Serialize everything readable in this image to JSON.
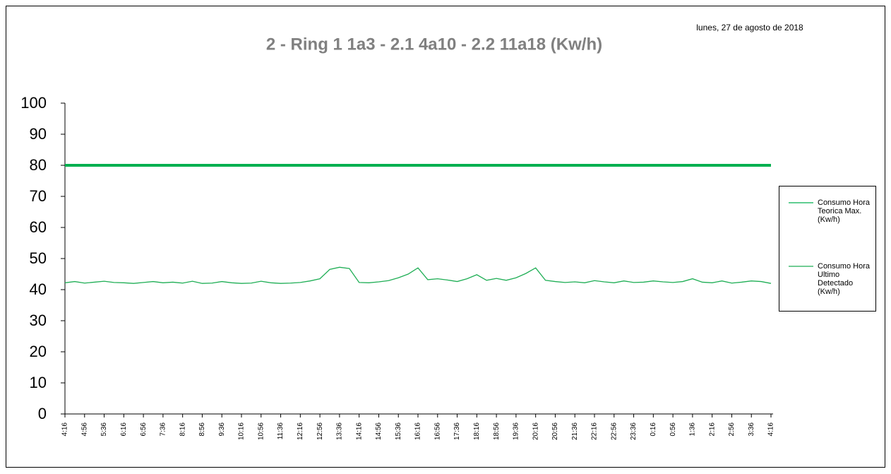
{
  "chart_data": {
    "type": "line",
    "title": "2 - Ring 1 1a3 - 2.1 4a10 - 2.2 11a18 (Kw/h)",
    "subtitle": "lunes, 27 de agosto de 2018",
    "categories": [
      "4:16",
      null,
      "4:56",
      null,
      "5:36",
      null,
      "6:16",
      null,
      "6:56",
      null,
      "7:36",
      null,
      "8:16",
      null,
      "8:56",
      null,
      "9:36",
      null,
      "10:16",
      null,
      "10:56",
      null,
      "11:36",
      null,
      "12:16",
      null,
      "12:56",
      null,
      "13:36",
      null,
      "14:16",
      null,
      "14:56",
      null,
      "15:36",
      null,
      "16:16",
      null,
      "16:56",
      null,
      "17:36",
      null,
      "18:16",
      null,
      "18:56",
      null,
      "19:36",
      null,
      "20:16",
      null,
      "20:56",
      null,
      "21:36",
      null,
      "22:16",
      null,
      "22:56",
      null,
      "23:36",
      null,
      "0:16",
      null,
      "0:56",
      null,
      "1:36",
      null,
      "2:16",
      null,
      "2:56",
      null,
      "3:36",
      null,
      "4:16"
    ],
    "series": [
      {
        "name": "Consumo Hora Teorica Max. (Kw/h)",
        "color": "#00b050",
        "values": [
          80,
          80,
          80,
          80,
          80,
          80,
          80,
          80,
          80,
          80,
          80,
          80,
          80,
          80,
          80,
          80,
          80,
          80,
          80,
          80,
          80,
          80,
          80,
          80,
          80,
          80,
          80,
          80,
          80,
          80,
          80,
          80,
          80,
          80,
          80,
          80,
          80,
          80,
          80,
          80,
          80,
          80,
          80,
          80,
          80,
          80,
          80,
          80,
          80,
          80,
          80,
          80,
          80,
          80,
          80,
          80,
          80,
          80,
          80,
          80,
          80,
          80,
          80,
          80,
          80,
          80,
          80,
          80,
          80,
          80,
          80,
          80,
          80
        ]
      },
      {
        "name": "Consumo Hora Ultimo Detectado (Kw/h)",
        "color": "#1fae55",
        "values": [
          42.2,
          42.6,
          42.1,
          42.4,
          42.7,
          42.3,
          42.2,
          42.0,
          42.3,
          42.6,
          42.2,
          42.4,
          42.1,
          42.7,
          42.0,
          42.1,
          42.6,
          42.2,
          42.0,
          42.1,
          42.7,
          42.2,
          42.0,
          42.1,
          42.3,
          42.8,
          43.5,
          46.5,
          47.2,
          46.8,
          42.3,
          42.2,
          42.5,
          42.9,
          43.8,
          45.0,
          47.0,
          43.2,
          43.5,
          43.1,
          42.6,
          43.5,
          44.8,
          43.0,
          43.6,
          43.0,
          43.8,
          45.2,
          47.0,
          43.0,
          42.6,
          42.3,
          42.5,
          42.2,
          42.9,
          42.5,
          42.2,
          42.8,
          42.3,
          42.4,
          42.8,
          42.5,
          42.3,
          42.6,
          43.5,
          42.4,
          42.2,
          42.8,
          42.1,
          42.4,
          42.8,
          42.6,
          42.0
        ]
      }
    ],
    "ylim": [
      0,
      100
    ],
    "yticks": [
      0,
      10,
      20,
      30,
      40,
      50,
      60,
      70,
      80,
      90,
      100
    ],
    "grid": false,
    "legend": "right"
  }
}
